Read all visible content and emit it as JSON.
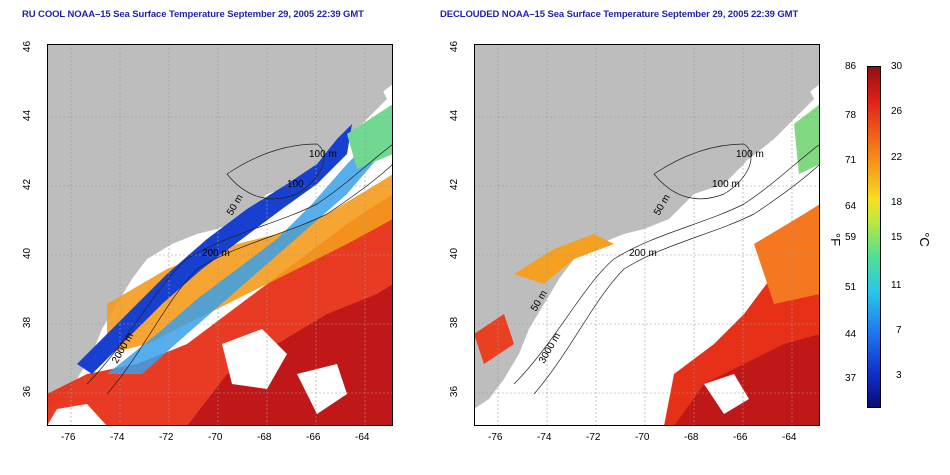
{
  "titles": {
    "left": "RU COOL NOAA–15 Sea Surface Temperature September 29, 2005 22:39 GMT",
    "right": "DECLOUDED NOAA–15 Sea Surface Temperature September 29, 2005 22:39 GMT"
  },
  "axes": {
    "lon_ticks": [
      "-76",
      "-74",
      "-72",
      "-70",
      "-68",
      "-66",
      "-64"
    ],
    "lat_ticks": [
      "36",
      "38",
      "40",
      "42",
      "44",
      "46"
    ]
  },
  "contours": {
    "left": [
      "100 m",
      "100",
      "50 m",
      "200 m",
      "2000 m"
    ],
    "right": [
      "100 m",
      "100 m",
      "50 m",
      "200 m",
      "50 m",
      "3000 m"
    ]
  },
  "colorbar": {
    "fahrenheit_unit": "°F",
    "celsius_unit": "°C",
    "fahrenheit": [
      "86",
      "78",
      "71",
      "64",
      "59",
      "51",
      "44",
      "37"
    ],
    "celsius": [
      "30",
      "26",
      "22",
      "18",
      "15",
      "11",
      "7",
      "3"
    ],
    "colors": [
      "#0a0a7a",
      "#1030c8",
      "#1e78f0",
      "#28c8e8",
      "#55e090",
      "#b8e840",
      "#f8e020",
      "#f8a018",
      "#f06018",
      "#e02018",
      "#901010"
    ]
  },
  "map_colors": {
    "land": "#bdbdbd",
    "cloud": "#ffffff",
    "grid": "#9a9a9a"
  }
}
